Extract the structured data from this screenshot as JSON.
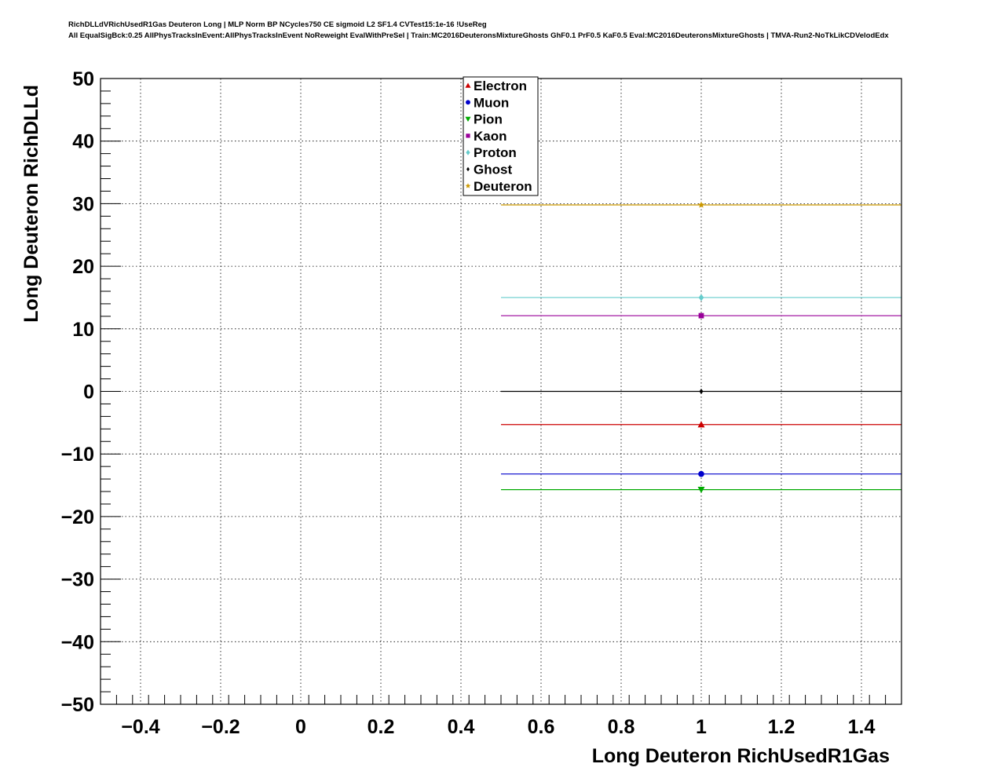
{
  "title_lines": [
    "RichDLLdVRichUsedR1Gas Deuteron Long | MLP Norm BP NCycles750 CE sigmoid L2 SF1.4 CVTest15:1e-16 !UseReg",
    "All EqualSigBck:0.25 AllPhysTracksInEvent:AllPhysTracksInEvent NoReweight EvalWithPreSel | Train:MC2016DeuteronsMixtureGhosts GhF0.1 PrF0.5 KaF0.5 Eval:MC2016DeuteronsMixtureGhosts | TMVA-Run2-NoTkLikCDVelodEdx"
  ],
  "chart_data": {
    "type": "scatter",
    "title": "RichDLLdVRichUsedR1Gas Deuteron Long | MLP Norm BP NCycles750 CE sigmoid L2 SF1.4 CVTest15:1e-16 !UseReg",
    "xlabel": "Long Deuteron RichUsedR1Gas",
    "ylabel": "Long Deuteron RichDLLd",
    "xlim": [
      -0.5,
      1.5
    ],
    "ylim": [
      -50,
      50
    ],
    "x_ticks": [
      -0.4,
      -0.2,
      0,
      0.2,
      0.4,
      0.6,
      0.8,
      1,
      1.2,
      1.4
    ],
    "x_tick_labels": [
      "−0.4",
      "−0.2",
      "0",
      "0.2",
      "0.4",
      "0.6",
      "0.8",
      "1",
      "1.2",
      "1.4"
    ],
    "y_ticks": [
      -50,
      -40,
      -30,
      -20,
      -10,
      0,
      10,
      20,
      30,
      40,
      50
    ],
    "y_tick_labels": [
      "−50",
      "−40",
      "−30",
      "−20",
      "−10",
      "0",
      "10",
      "20",
      "30",
      "40",
      "50"
    ],
    "grid": true,
    "legend_position": "top-center",
    "series": [
      {
        "name": "Electron",
        "color": "#cc0000",
        "marker": "triangle-up",
        "x": 1,
        "y": -5.3,
        "xerr_low": 0.5,
        "xerr_high": 0.5
      },
      {
        "name": "Muon",
        "color": "#0000cc",
        "marker": "circle",
        "x": 1,
        "y": -13.2,
        "xerr_low": 0.5,
        "xerr_high": 0.5
      },
      {
        "name": "Pion",
        "color": "#00aa00",
        "marker": "triangle-down",
        "x": 1,
        "y": -15.7,
        "xerr_low": 0.5,
        "xerr_high": 0.5
      },
      {
        "name": "Kaon",
        "color": "#990099",
        "marker": "square",
        "x": 1,
        "y": 12.1,
        "xerr_low": 0.5,
        "xerr_high": 0.5
      },
      {
        "name": "Proton",
        "color": "#66cccc",
        "marker": "diamond",
        "x": 1,
        "y": 15.0,
        "xerr_low": 0.5,
        "xerr_high": 0.5
      },
      {
        "name": "Ghost",
        "color": "#000000",
        "marker": "diamond-small",
        "x": 1,
        "y": 0.0,
        "xerr_low": 0.5,
        "xerr_high": 0.5
      },
      {
        "name": "Deuteron",
        "color": "#cc9900",
        "marker": "star",
        "x": 1,
        "y": 29.8,
        "xerr_low": 0.5,
        "xerr_high": 0.5
      }
    ]
  }
}
